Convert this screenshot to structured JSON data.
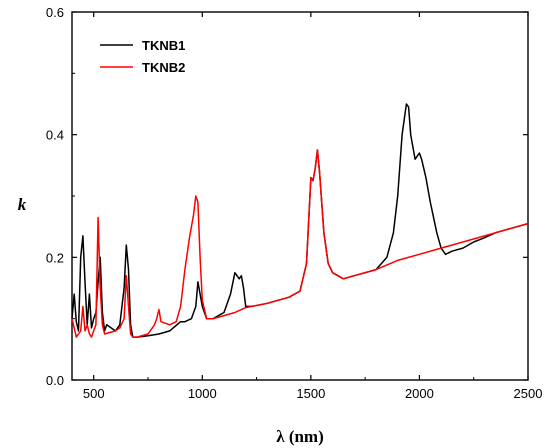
{
  "chart_data": {
    "type": "line",
    "xlabel": "λ (nm)",
    "ylabel": "k",
    "xlim": [
      400,
      2500
    ],
    "ylim": [
      0.0,
      0.6
    ],
    "xticks": [
      500,
      1000,
      1500,
      2000,
      2500
    ],
    "yticks": [
      0.0,
      0.2,
      0.4,
      0.6
    ],
    "xtick_labels": [
      "500",
      "1000",
      "1500",
      "2000",
      "2500"
    ],
    "ytick_labels": [
      "0.0",
      "0.2",
      "0.4",
      "0.6"
    ],
    "grid": false,
    "legend_position": "top-left",
    "series": [
      {
        "name": "TKNB1",
        "color": "#000000",
        "x": [
          400,
          410,
          420,
          430,
          440,
          450,
          460,
          470,
          480,
          490,
          500,
          510,
          520,
          530,
          540,
          550,
          560,
          580,
          600,
          620,
          640,
          650,
          660,
          670,
          680,
          700,
          750,
          800,
          850,
          900,
          920,
          950,
          970,
          980,
          1000,
          1020,
          1050,
          1100,
          1130,
          1150,
          1160,
          1170,
          1180,
          1190,
          1200,
          1230,
          1300,
          1400,
          1450,
          1480,
          1500,
          1510,
          1520,
          1530,
          1540,
          1560,
          1580,
          1600,
          1650,
          1700,
          1750,
          1800,
          1850,
          1880,
          1900,
          1920,
          1940,
          1950,
          1960,
          1980,
          2000,
          2010,
          2030,
          2050,
          2080,
          2100,
          2120,
          2150,
          2200,
          2250,
          2300,
          2350,
          2400,
          2450,
          2500
        ],
        "values": [
          0.1,
          0.14,
          0.095,
          0.08,
          0.2,
          0.235,
          0.16,
          0.09,
          0.14,
          0.085,
          0.1,
          0.11,
          0.16,
          0.2,
          0.11,
          0.08,
          0.09,
          0.085,
          0.08,
          0.09,
          0.15,
          0.22,
          0.18,
          0.09,
          0.07,
          0.07,
          0.072,
          0.075,
          0.08,
          0.095,
          0.095,
          0.1,
          0.12,
          0.16,
          0.12,
          0.1,
          0.1,
          0.11,
          0.14,
          0.175,
          0.17,
          0.165,
          0.17,
          0.15,
          0.12,
          0.12,
          0.125,
          0.135,
          0.145,
          0.19,
          0.33,
          0.325,
          0.345,
          0.375,
          0.34,
          0.24,
          0.19,
          0.175,
          0.165,
          0.17,
          0.175,
          0.18,
          0.2,
          0.24,
          0.3,
          0.4,
          0.45,
          0.445,
          0.4,
          0.36,
          0.37,
          0.36,
          0.33,
          0.29,
          0.24,
          0.215,
          0.205,
          0.21,
          0.215,
          0.225,
          0.232,
          0.24,
          0.245,
          0.25,
          0.255
        ]
      },
      {
        "name": "TKNB2",
        "color": "#ff0000",
        "x": [
          400,
          410,
          420,
          430,
          440,
          450,
          460,
          470,
          480,
          490,
          500,
          510,
          520,
          530,
          540,
          550,
          600,
          620,
          640,
          650,
          660,
          670,
          680,
          700,
          750,
          780,
          790,
          800,
          810,
          850,
          880,
          900,
          920,
          940,
          960,
          970,
          980,
          990,
          1000,
          1020,
          1050,
          1100,
          1150,
          1200,
          1300,
          1400,
          1450,
          1480,
          1500,
          1510,
          1520,
          1530,
          1540,
          1560,
          1580,
          1600,
          1650,
          1700,
          1800,
          1900,
          2000,
          2100,
          2200,
          2300,
          2400,
          2500
        ],
        "values": [
          0.1,
          0.085,
          0.07,
          0.075,
          0.08,
          0.12,
          0.08,
          0.09,
          0.075,
          0.07,
          0.08,
          0.09,
          0.265,
          0.15,
          0.09,
          0.075,
          0.08,
          0.085,
          0.1,
          0.17,
          0.12,
          0.075,
          0.07,
          0.07,
          0.075,
          0.09,
          0.1,
          0.115,
          0.095,
          0.09,
          0.095,
          0.12,
          0.18,
          0.23,
          0.27,
          0.3,
          0.29,
          0.2,
          0.13,
          0.1,
          0.1,
          0.105,
          0.11,
          0.118,
          0.125,
          0.135,
          0.145,
          0.19,
          0.33,
          0.325,
          0.345,
          0.375,
          0.34,
          0.24,
          0.19,
          0.175,
          0.165,
          0.17,
          0.18,
          0.195,
          0.205,
          0.215,
          0.225,
          0.235,
          0.245,
          0.255
        ]
      }
    ]
  }
}
